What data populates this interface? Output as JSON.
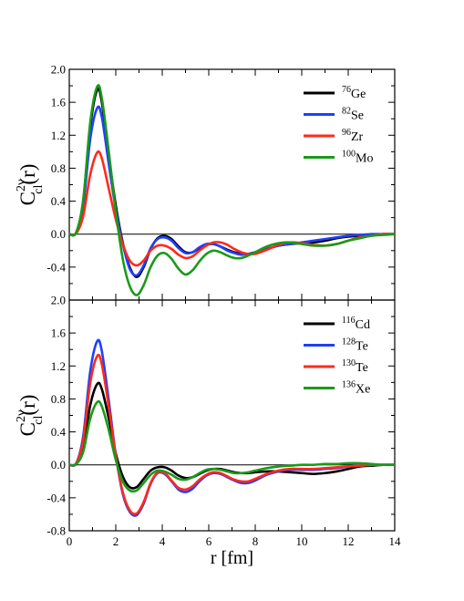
{
  "chart_data": [
    {
      "type": "line",
      "panel": "top",
      "ylabel": {
        "base": "C",
        "sup": "2ν",
        "sub": "cl",
        "arg": "(r)"
      },
      "xlabel": "",
      "xlim": [
        0,
        14
      ],
      "ylim": [
        -0.8,
        2.0
      ],
      "yticks": [
        "2.0",
        "1.6",
        "1.2",
        "0.8",
        "0.4",
        "0.0",
        "-0.4"
      ],
      "legend_position": "top-right",
      "series": [
        {
          "name": "Ge",
          "mass": "76",
          "color": "#000000",
          "x": [
            0,
            0.3,
            0.6,
            0.9,
            1.2,
            1.4,
            1.7,
            2.0,
            2.3,
            2.6,
            2.9,
            3.2,
            3.5,
            3.8,
            4.1,
            4.4,
            4.7,
            5.0,
            5.3,
            5.6,
            5.9,
            6.2,
            6.5,
            6.8,
            7.1,
            7.4,
            7.7,
            8.0,
            8.5,
            9.0,
            9.5,
            10.0,
            10.5,
            11.0,
            11.5,
            12.0,
            12.5,
            13.0,
            13.5,
            14.0
          ],
          "y": [
            0,
            0.02,
            0.4,
            1.3,
            1.75,
            1.6,
            0.95,
            0.35,
            -0.1,
            -0.4,
            -0.52,
            -0.4,
            -0.18,
            -0.05,
            -0.02,
            -0.06,
            -0.15,
            -0.22,
            -0.22,
            -0.17,
            -0.13,
            -0.12,
            -0.15,
            -0.19,
            -0.22,
            -0.24,
            -0.24,
            -0.22,
            -0.18,
            -0.14,
            -0.12,
            -0.11,
            -0.1,
            -0.08,
            -0.05,
            -0.03,
            -0.02,
            -0.01,
            0,
            0
          ]
        },
        {
          "name": "Se",
          "mass": "82",
          "color": "#1f3fff",
          "x": [
            0,
            0.3,
            0.6,
            0.9,
            1.2,
            1.4,
            1.7,
            2.0,
            2.3,
            2.6,
            2.9,
            3.2,
            3.5,
            3.8,
            4.1,
            4.4,
            4.7,
            5.0,
            5.3,
            5.6,
            5.9,
            6.2,
            6.5,
            6.8,
            7.1,
            7.4,
            7.7,
            8.0,
            8.5,
            9.0,
            9.5,
            10.0,
            10.5,
            11.0,
            11.5,
            12.0,
            12.5,
            13.0,
            13.5,
            14.0
          ],
          "y": [
            0,
            0.02,
            0.35,
            1.15,
            1.53,
            1.42,
            0.85,
            0.3,
            -0.12,
            -0.42,
            -0.5,
            -0.38,
            -0.17,
            -0.06,
            -0.04,
            -0.08,
            -0.17,
            -0.23,
            -0.22,
            -0.16,
            -0.12,
            -0.12,
            -0.15,
            -0.2,
            -0.23,
            -0.25,
            -0.24,
            -0.22,
            -0.18,
            -0.14,
            -0.12,
            -0.1,
            -0.08,
            -0.06,
            -0.04,
            -0.02,
            -0.01,
            0,
            0,
            0
          ]
        },
        {
          "name": "Zr",
          "mass": "96",
          "color": "#ff2a1a",
          "x": [
            0,
            0.3,
            0.6,
            0.9,
            1.2,
            1.4,
            1.7,
            2.0,
            2.3,
            2.6,
            2.9,
            3.2,
            3.5,
            3.8,
            4.1,
            4.4,
            4.7,
            5.0,
            5.3,
            5.6,
            5.9,
            6.2,
            6.5,
            6.8,
            7.1,
            7.4,
            7.7,
            8.0,
            8.5,
            9.0,
            9.5,
            10.0,
            10.5,
            11.0,
            11.5,
            12.0,
            12.5,
            13.0,
            13.5,
            14.0
          ],
          "y": [
            0,
            0.01,
            0.22,
            0.72,
            0.99,
            0.92,
            0.55,
            0.18,
            -0.12,
            -0.32,
            -0.38,
            -0.32,
            -0.2,
            -0.14,
            -0.14,
            -0.18,
            -0.25,
            -0.29,
            -0.27,
            -0.2,
            -0.14,
            -0.1,
            -0.1,
            -0.13,
            -0.18,
            -0.22,
            -0.24,
            -0.24,
            -0.19,
            -0.13,
            -0.1,
            -0.11,
            -0.13,
            -0.14,
            -0.12,
            -0.08,
            -0.04,
            -0.02,
            0,
            0
          ]
        },
        {
          "name": "Mo",
          "mass": "100",
          "color": "#1a9a1a",
          "x": [
            0,
            0.3,
            0.6,
            0.9,
            1.2,
            1.4,
            1.7,
            2.0,
            2.3,
            2.6,
            2.9,
            3.2,
            3.5,
            3.8,
            4.1,
            4.4,
            4.7,
            5.0,
            5.3,
            5.6,
            5.9,
            6.2,
            6.5,
            6.8,
            7.1,
            7.4,
            7.7,
            8.0,
            8.5,
            9.0,
            9.5,
            10.0,
            10.5,
            11.0,
            11.5,
            12.0,
            12.5,
            13.0,
            13.5,
            14.0
          ],
          "y": [
            0,
            0.02,
            0.42,
            1.35,
            1.79,
            1.65,
            1.0,
            0.28,
            -0.3,
            -0.63,
            -0.74,
            -0.62,
            -0.4,
            -0.26,
            -0.23,
            -0.3,
            -0.42,
            -0.49,
            -0.44,
            -0.33,
            -0.24,
            -0.2,
            -0.22,
            -0.26,
            -0.29,
            -0.29,
            -0.26,
            -0.22,
            -0.15,
            -0.11,
            -0.1,
            -0.12,
            -0.14,
            -0.14,
            -0.12,
            -0.08,
            -0.05,
            -0.02,
            -0.01,
            0
          ]
        }
      ]
    },
    {
      "type": "line",
      "panel": "bottom",
      "ylabel": {
        "base": "C",
        "sup": "2ν",
        "sub": "cl",
        "arg": "(r)"
      },
      "xlabel": "r [fm]",
      "xlim": [
        0,
        14
      ],
      "ylim": [
        -0.8,
        2.0
      ],
      "yticks": [
        "2.0",
        "1.6",
        "1.2",
        "0.8",
        "0.4",
        "0.0",
        "-0.4",
        "-0.8"
      ],
      "xticks": [
        "0",
        "2",
        "4",
        "6",
        "8",
        "10",
        "12",
        "14"
      ],
      "legend_position": "top-right",
      "series": [
        {
          "name": "Cd",
          "mass": "116",
          "color": "#000000",
          "x": [
            0,
            0.3,
            0.6,
            0.9,
            1.2,
            1.4,
            1.7,
            2.0,
            2.3,
            2.6,
            2.9,
            3.2,
            3.5,
            3.8,
            4.1,
            4.4,
            4.7,
            5.0,
            5.3,
            5.6,
            5.9,
            6.2,
            6.5,
            6.8,
            7.1,
            7.4,
            7.7,
            8.0,
            8.5,
            9.0,
            9.5,
            10.0,
            10.5,
            11.0,
            11.5,
            12.0,
            12.5,
            13.0,
            13.5,
            14.0
          ],
          "y": [
            0,
            0.01,
            0.2,
            0.72,
            0.98,
            0.92,
            0.56,
            0.14,
            -0.14,
            -0.27,
            -0.27,
            -0.17,
            -0.07,
            -0.03,
            -0.03,
            -0.07,
            -0.13,
            -0.16,
            -0.15,
            -0.11,
            -0.07,
            -0.05,
            -0.05,
            -0.07,
            -0.09,
            -0.1,
            -0.1,
            -0.09,
            -0.08,
            -0.08,
            -0.09,
            -0.1,
            -0.11,
            -0.1,
            -0.08,
            -0.05,
            -0.02,
            -0.01,
            0,
            0
          ]
        },
        {
          "name": "Te",
          "mass": "128",
          "color": "#1f3fff",
          "x": [
            0,
            0.3,
            0.6,
            0.9,
            1.2,
            1.4,
            1.7,
            2.0,
            2.3,
            2.6,
            2.9,
            3.2,
            3.5,
            3.8,
            4.1,
            4.4,
            4.7,
            5.0,
            5.3,
            5.6,
            5.9,
            6.2,
            6.5,
            6.8,
            7.1,
            7.4,
            7.7,
            8.0,
            8.5,
            9.0,
            9.5,
            10.0,
            10.5,
            11.0,
            11.5,
            12.0,
            12.5,
            13.0,
            13.5,
            14.0
          ],
          "y": [
            0,
            0.02,
            0.35,
            1.13,
            1.5,
            1.38,
            0.78,
            0.12,
            -0.35,
            -0.57,
            -0.61,
            -0.47,
            -0.23,
            -0.1,
            -0.11,
            -0.2,
            -0.3,
            -0.33,
            -0.29,
            -0.2,
            -0.13,
            -0.1,
            -0.11,
            -0.15,
            -0.19,
            -0.22,
            -0.22,
            -0.19,
            -0.12,
            -0.08,
            -0.06,
            -0.06,
            -0.06,
            -0.05,
            -0.04,
            -0.02,
            -0.01,
            0,
            0,
            0
          ]
        },
        {
          "name": "Te",
          "mass": "130",
          "color": "#ff2a1a",
          "x": [
            0,
            0.3,
            0.6,
            0.9,
            1.2,
            1.4,
            1.7,
            2.0,
            2.3,
            2.6,
            2.9,
            3.2,
            3.5,
            3.8,
            4.1,
            4.4,
            4.7,
            5.0,
            5.3,
            5.6,
            5.9,
            6.2,
            6.5,
            6.8,
            7.1,
            7.4,
            7.7,
            8.0,
            8.5,
            9.0,
            9.5,
            10.0,
            10.5,
            11.0,
            11.5,
            12.0,
            12.5,
            13.0,
            13.5,
            14.0
          ],
          "y": [
            0,
            0.02,
            0.3,
            0.99,
            1.32,
            1.22,
            0.7,
            0.11,
            -0.33,
            -0.55,
            -0.59,
            -0.45,
            -0.22,
            -0.09,
            -0.1,
            -0.19,
            -0.28,
            -0.3,
            -0.26,
            -0.18,
            -0.12,
            -0.09,
            -0.1,
            -0.14,
            -0.18,
            -0.2,
            -0.2,
            -0.17,
            -0.11,
            -0.07,
            -0.05,
            -0.05,
            -0.05,
            -0.04,
            -0.03,
            -0.02,
            -0.01,
            0,
            0,
            0
          ]
        },
        {
          "name": "Xe",
          "mass": "136",
          "color": "#1a9a1a",
          "x": [
            0,
            0.3,
            0.6,
            0.9,
            1.2,
            1.4,
            1.7,
            2.0,
            2.3,
            2.6,
            2.9,
            3.2,
            3.5,
            3.8,
            4.1,
            4.4,
            4.7,
            5.0,
            5.3,
            5.6,
            5.9,
            6.2,
            6.5,
            6.8,
            7.1,
            7.4,
            7.7,
            8.0,
            8.5,
            9.0,
            9.5,
            10.0,
            10.5,
            11.0,
            11.5,
            12.0,
            12.5,
            13.0,
            13.5,
            14.0
          ],
          "y": [
            0,
            0.01,
            0.16,
            0.56,
            0.76,
            0.71,
            0.42,
            0.06,
            -0.2,
            -0.31,
            -0.31,
            -0.22,
            -0.12,
            -0.07,
            -0.08,
            -0.12,
            -0.17,
            -0.18,
            -0.15,
            -0.1,
            -0.06,
            -0.05,
            -0.06,
            -0.08,
            -0.1,
            -0.1,
            -0.09,
            -0.07,
            -0.04,
            -0.02,
            -0.01,
            0,
            0,
            0.01,
            0.01,
            0.02,
            0.02,
            0.01,
            0,
            0
          ]
        }
      ]
    }
  ]
}
